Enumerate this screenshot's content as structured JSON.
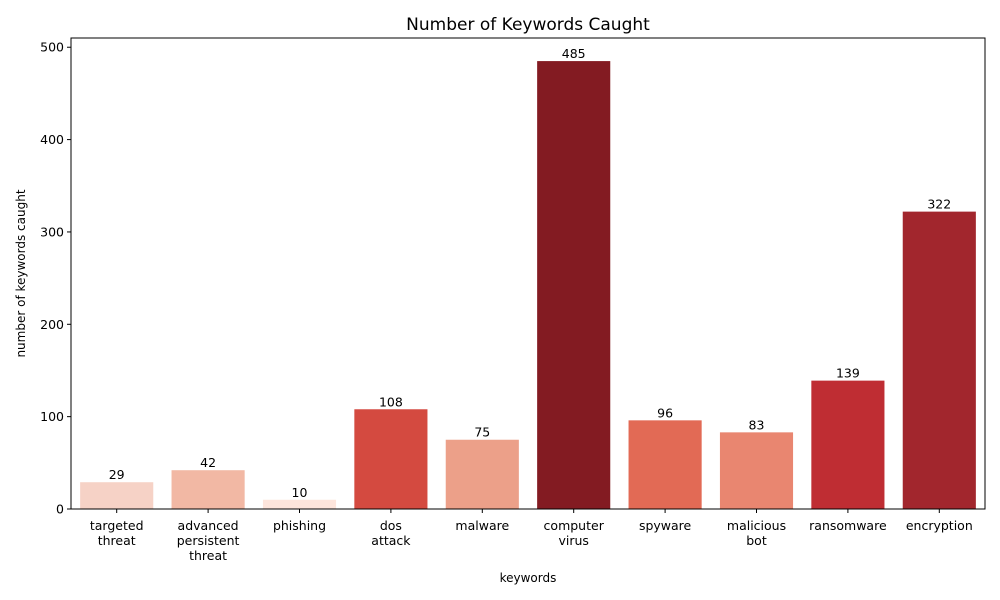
{
  "chart_data": {
    "type": "bar",
    "title": "Number of Keywords Caught",
    "xlabel": "keywords",
    "ylabel": "number of keywords caught",
    "ylim": [
      0,
      510
    ],
    "yticks": [
      0,
      100,
      200,
      300,
      400,
      500
    ],
    "categories": [
      [
        "targeted",
        "threat"
      ],
      [
        "advanced",
        "persistent",
        "threat"
      ],
      [
        "phishing"
      ],
      [
        "dos",
        "attack"
      ],
      [
        "malware"
      ],
      [
        "computer",
        "virus"
      ],
      [
        "spyware"
      ],
      [
        "malicious",
        "bot"
      ],
      [
        "ransomware"
      ],
      [
        "encryption"
      ]
    ],
    "values": [
      29,
      42,
      10,
      108,
      75,
      485,
      96,
      83,
      139,
      322
    ],
    "colors": [
      "#f6d2c6",
      "#f2b8a4",
      "#fde5dc",
      "#d44a40",
      "#eca089",
      "#831b22",
      "#e26a55",
      "#e98670",
      "#bf2d33",
      "#a2262d"
    ],
    "legend": "none",
    "grid": false
  }
}
